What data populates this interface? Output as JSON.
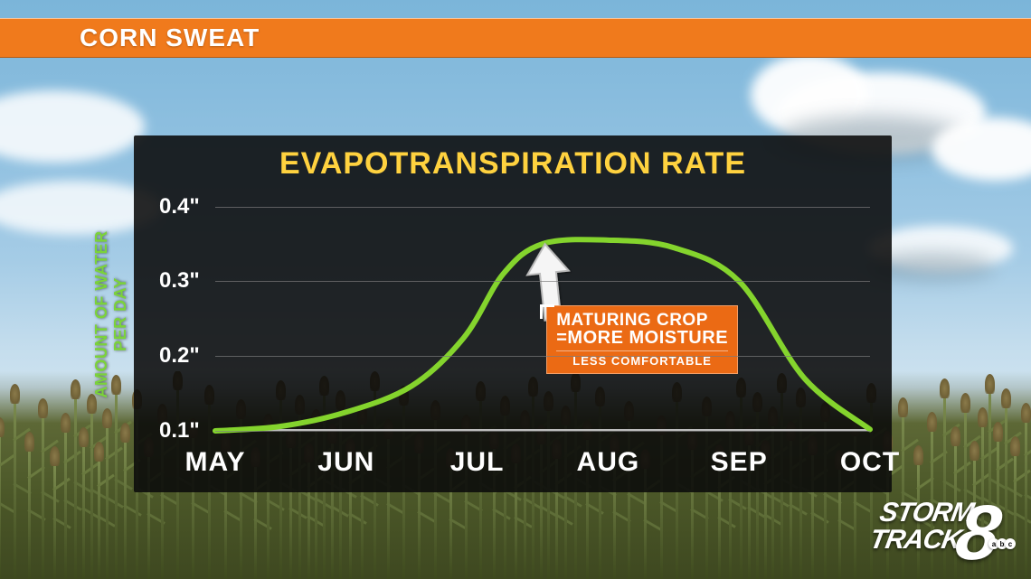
{
  "header": {
    "title": "CORN SWEAT"
  },
  "chart": {
    "type": "line",
    "title": "EVAPOTRANSPIRATION RATE",
    "title_color": "#ffd23f",
    "title_fontsize": 34,
    "panel_bg": "rgba(10,10,10,0.88)",
    "y_axis_label_line1": "AMOUNT OF WATER",
    "y_axis_label_line2": "PER DAY",
    "y_axis_label_color": "#7bd33a",
    "y_ticks": [
      "0.1\"",
      "0.2\"",
      "0.3\"",
      "0.4\""
    ],
    "y_tick_values": [
      0.1,
      0.2,
      0.3,
      0.4
    ],
    "ylim": [
      0.1,
      0.42
    ],
    "x_ticks": [
      "MAY",
      "JUN",
      "JUL",
      "AUG",
      "SEP",
      "OCT"
    ],
    "grid_color": "#7a7a7a",
    "line_color": "#84d42d",
    "line_width": 6,
    "series": {
      "x_index": [
        0,
        0.5,
        1,
        1.5,
        1.9,
        2.2,
        2.5,
        3,
        3.5,
        4,
        4.5,
        5
      ],
      "y": [
        0.1,
        0.106,
        0.125,
        0.16,
        0.225,
        0.31,
        0.35,
        0.355,
        0.345,
        0.3,
        0.17,
        0.102
      ]
    }
  },
  "callout": {
    "line1": "MATURING CROP",
    "line2": "=MORE MOISTURE",
    "line3": "LESS COMFORTABLE",
    "bg": "#eb6a14",
    "text_color": "#ffffff"
  },
  "logo": {
    "line1": "STORM",
    "line2": "TRACK",
    "number": "8",
    "network": "abc"
  },
  "colors": {
    "header_bg": "#f07a1c",
    "sky_top": "#7bb5d9",
    "sky_bottom": "#e8f0f4",
    "field": "#4b5728"
  }
}
